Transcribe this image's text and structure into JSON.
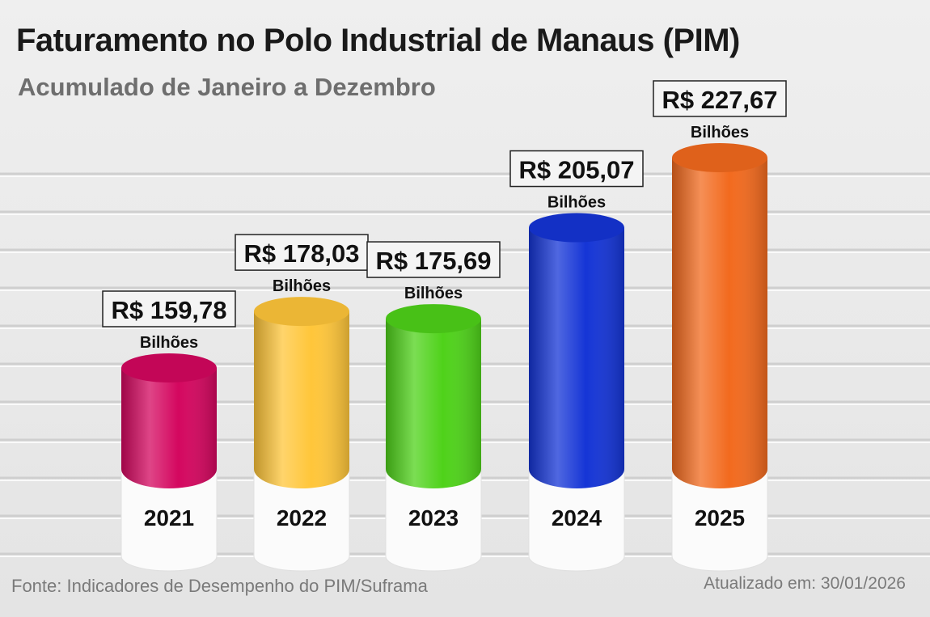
{
  "chart_data": {
    "type": "bar",
    "title": "Faturamento no Polo Industrial de Manaus (PIM)",
    "subtitle": "Acumulado de Janeiro a Dezembro",
    "categories": [
      "2021",
      "2022",
      "2023",
      "2024",
      "2025"
    ],
    "values": [
      159.78,
      178.03,
      175.69,
      205.07,
      227.67
    ],
    "data_labels": [
      "R$ 159,78",
      "R$ 178,03",
      "R$ 175,69",
      "R$ 205,07",
      "R$ 227,67"
    ],
    "unit_label": "Bilhões",
    "colors": [
      "#d4075f",
      "#ffc63a",
      "#4fd21a",
      "#1535d6",
      "#f26a1e"
    ],
    "grid": true,
    "legend": "none"
  },
  "footer": {
    "source": "Fonte: Indicadores de Desempenho do PIM/Suframa",
    "updated": "Atualizado em: 30/01/2026"
  }
}
